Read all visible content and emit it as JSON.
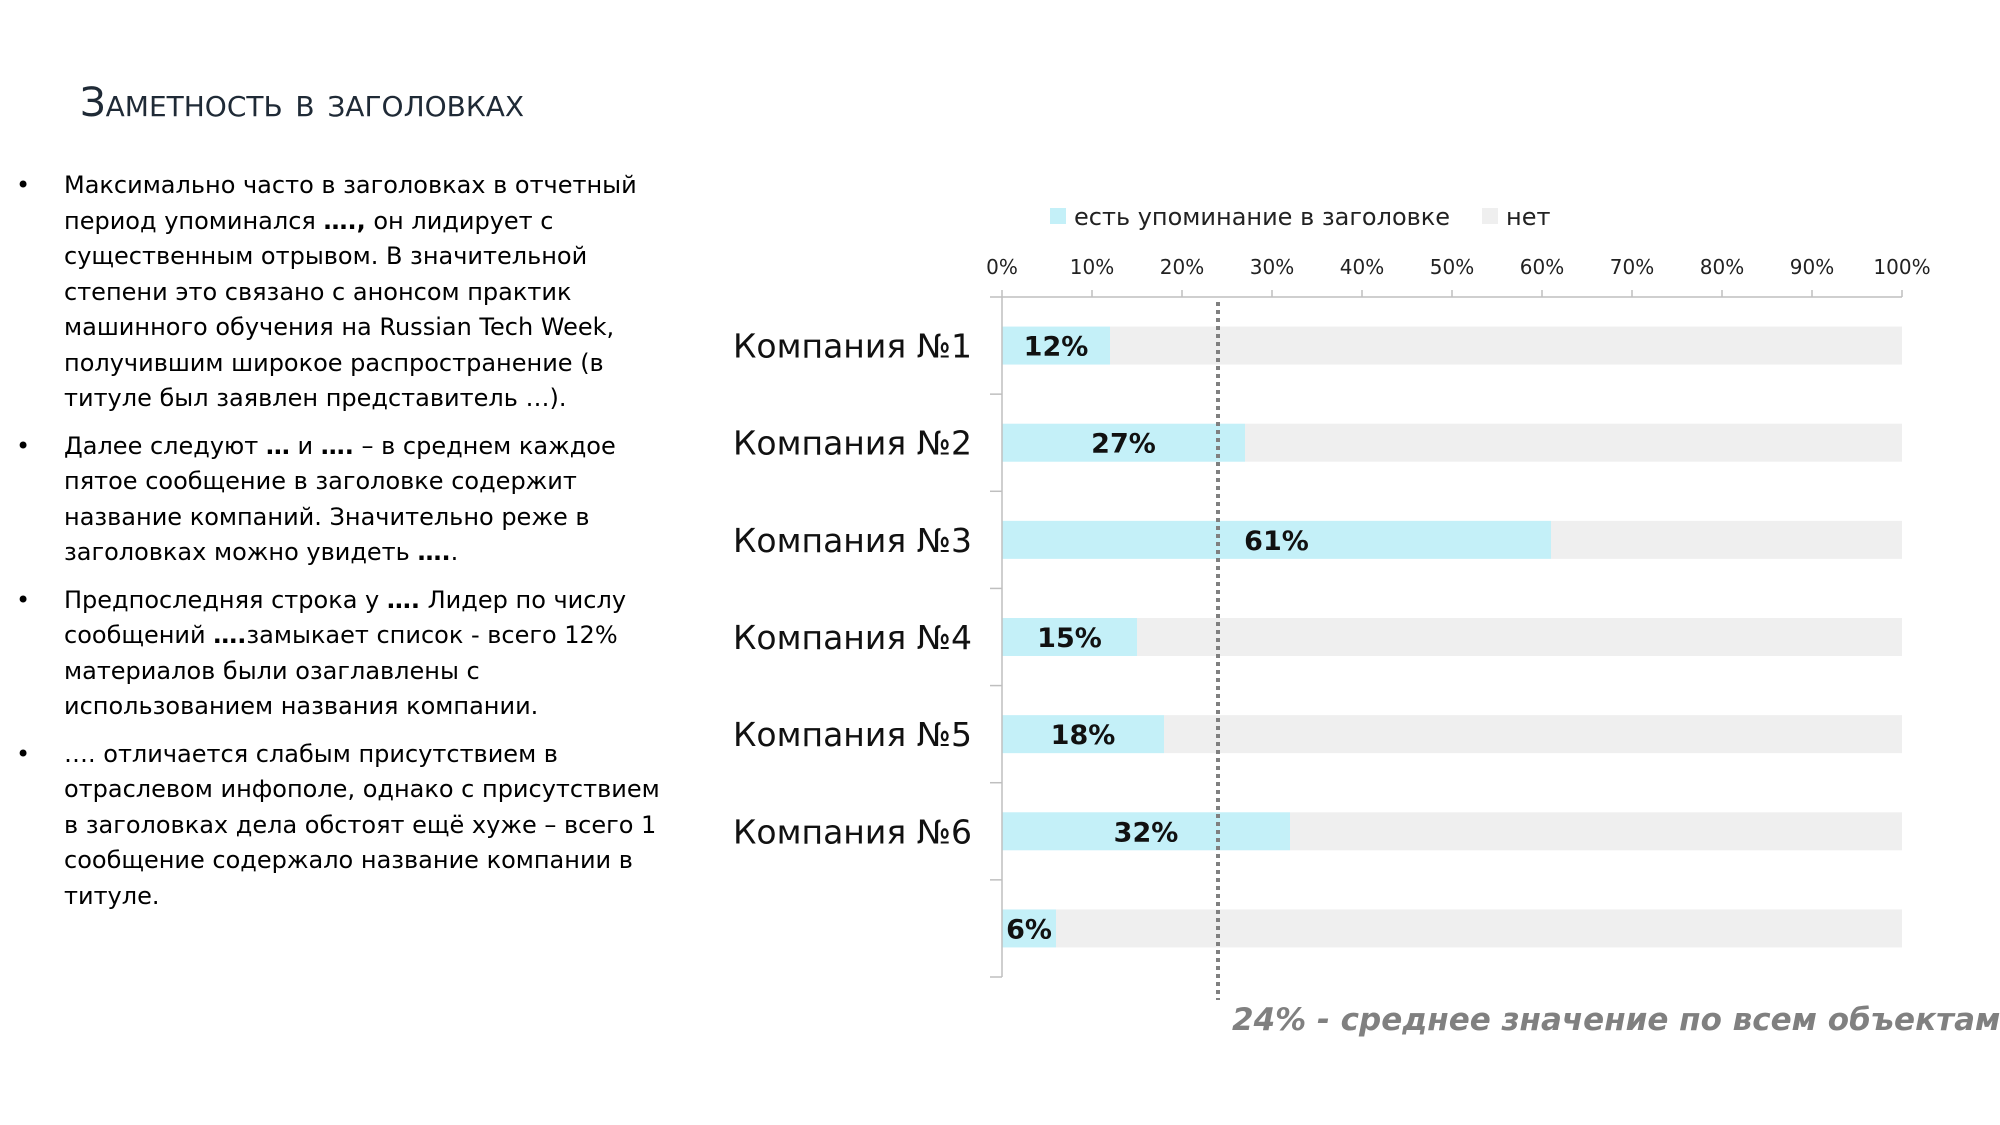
{
  "slide": {
    "title": "Заметность в заголовках",
    "bullet_marker": "•",
    "bullets": [
      [
        {
          "t": "Максимально часто в заголовках в отчетный период упоминался "
        },
        {
          "t": "….,",
          "b": true
        },
        {
          "t": "  он лидирует с существенным отрывом. В значительной степени это связано с анонсом практик машинного обучения на Russian Tech Week, получившим широкое распространение (в титуле был заявлен представитель …)."
        }
      ],
      [
        {
          "t": "Далее следуют "
        },
        {
          "t": "…",
          "b": true
        },
        {
          "t": " и "
        },
        {
          "t": "….",
          "b": true
        },
        {
          "t": " – в среднем каждое пятое сообщение в заголовке содержит название компаний. Значительно реже в заголовках можно увидеть "
        },
        {
          "t": "….",
          "b": true
        },
        {
          "t": "."
        }
      ],
      [
        {
          "t": "Предпоследняя строка у "
        },
        {
          "t": "….",
          "b": true
        },
        {
          "t": " Лидер по числу сообщений "
        },
        {
          "t": "….",
          "b": true
        },
        {
          "t": "замыкает список - всего 12% материалов были озаглавлены с использованием названия компании."
        }
      ],
      [
        {
          "t": "…. отличается слабым присутствием в отраслевом инфополе, однако с присутствием в заголовках дела обстоят ещё хуже – всего 1 сообщение содержало название компании в титуле."
        }
      ]
    ],
    "average_note": "24% - среднее значение по всем объектам"
  },
  "chart_data": {
    "type": "bar",
    "orientation": "horizontal",
    "stacked_percent": true,
    "categories": [
      "Компания №1",
      "Компания №2",
      "Компания №3",
      "Компания №4",
      "Компания №5",
      "Компания №6",
      ""
    ],
    "series": [
      {
        "name": "есть упоминание в заголовке",
        "values": [
          12,
          27,
          61,
          15,
          18,
          32,
          6
        ],
        "color": "#c4f0f8"
      },
      {
        "name": "нет",
        "values": [
          88,
          73,
          39,
          85,
          82,
          68,
          94
        ],
        "color": "#efefef"
      }
    ],
    "data_labels": [
      "12%",
      "27%",
      "61%",
      "15%",
      "18%",
      "32%",
      "6%"
    ],
    "x_ticks": [
      "0%",
      "10%",
      "20%",
      "30%",
      "40%",
      "50%",
      "60%",
      "70%",
      "80%",
      "90%",
      "100%"
    ],
    "xlim": [
      0,
      100
    ],
    "x_axis_position": "top",
    "legend_position": "top",
    "reference_line": {
      "value": 24,
      "style": "dotted",
      "color": "#808080"
    },
    "grid": false
  }
}
